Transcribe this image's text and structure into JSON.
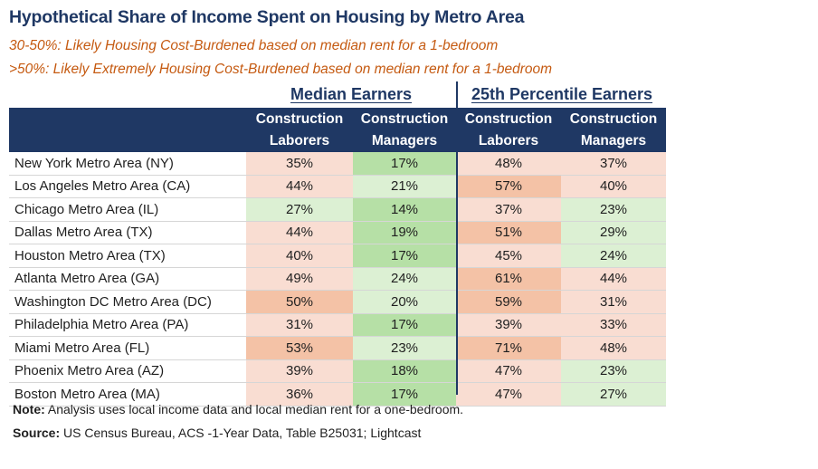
{
  "title": "Hypothetical Share of Income Spent on Housing by Metro Area",
  "legend": [
    "30-50%: Likely Housing Cost-Burdened based on median rent for a 1-bedroom",
    ">50%: Likely Extremely Housing Cost-Burdened based on median rent for a 1-bedroom"
  ],
  "groups": [
    "Median Earners",
    "25th Percentile Earners"
  ],
  "columns": [
    {
      "line1": "Construction",
      "line2": "Laborers"
    },
    {
      "line1": "Construction",
      "line2": "Managers"
    },
    {
      "line1": "Construction",
      "line2": "Laborers"
    },
    {
      "line1": "Construction",
      "line2": "Managers"
    }
  ],
  "colors": {
    "header_bg": "#1f3864",
    "deep_green": "#b6e0a6",
    "light_green": "#dcf0d3",
    "light_pink": "#f9ddd2",
    "deep_orange": "#f4c2a6"
  },
  "rows": [
    {
      "metro": "New York Metro Area (NY)",
      "values": [
        "35%",
        "17%",
        "48%",
        "37%"
      ]
    },
    {
      "metro": "Los Angeles Metro Area (CA)",
      "values": [
        "44%",
        "21%",
        "57%",
        "40%"
      ]
    },
    {
      "metro": "Chicago Metro Area (IL)",
      "values": [
        "27%",
        "14%",
        "37%",
        "23%"
      ]
    },
    {
      "metro": "Dallas Metro Area (TX)",
      "values": [
        "44%",
        "19%",
        "51%",
        "29%"
      ]
    },
    {
      "metro": "Houston Metro Area (TX)",
      "values": [
        "40%",
        "17%",
        "45%",
        "24%"
      ]
    },
    {
      "metro": "Atlanta Metro Area (GA)",
      "values": [
        "49%",
        "24%",
        "61%",
        "44%"
      ]
    },
    {
      "metro": "Washington DC Metro Area (DC)",
      "values": [
        "50%",
        "20%",
        "59%",
        "31%"
      ]
    },
    {
      "metro": "Philadelphia Metro Area (PA)",
      "values": [
        "31%",
        "17%",
        "39%",
        "33%"
      ]
    },
    {
      "metro": "Miami Metro Area (FL)",
      "values": [
        "53%",
        "23%",
        "71%",
        "48%"
      ]
    },
    {
      "metro": "Phoenix Metro Area (AZ)",
      "values": [
        "39%",
        "18%",
        "47%",
        "23%"
      ]
    },
    {
      "metro": "Boston Metro Area (MA)",
      "values": [
        "36%",
        "17%",
        "47%",
        "27%"
      ]
    }
  ],
  "cell_shades": [
    [
      "light_pink",
      "deep_green",
      "light_pink",
      "light_pink"
    ],
    [
      "light_pink",
      "light_green",
      "deep_orange",
      "light_pink"
    ],
    [
      "light_green",
      "deep_green",
      "light_pink",
      "light_green"
    ],
    [
      "light_pink",
      "deep_green",
      "deep_orange",
      "light_green"
    ],
    [
      "light_pink",
      "deep_green",
      "light_pink",
      "light_green"
    ],
    [
      "light_pink",
      "light_green",
      "deep_orange",
      "light_pink"
    ],
    [
      "deep_orange",
      "light_green",
      "deep_orange",
      "light_pink"
    ],
    [
      "light_pink",
      "deep_green",
      "light_pink",
      "light_pink"
    ],
    [
      "deep_orange",
      "light_green",
      "deep_orange",
      "light_pink"
    ],
    [
      "light_pink",
      "deep_green",
      "light_pink",
      "light_green"
    ],
    [
      "light_pink",
      "deep_green",
      "light_pink",
      "light_green"
    ]
  ],
  "note": {
    "label": "Note:",
    "text": " Analysis uses local income data and local median rent for a one-bedroom."
  },
  "source": {
    "label": "Source:",
    "text": " US Census Bureau, ACS -1-Year Data, Table B25031; Lightcast"
  }
}
